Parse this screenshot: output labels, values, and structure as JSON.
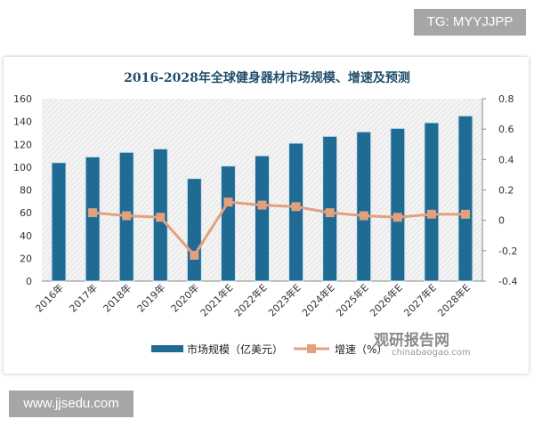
{
  "watermark_top": "TG: MYYJJPP",
  "watermark_bottom": "www.jjsedu.com",
  "brand": {
    "name": "观研报告网",
    "url": "chinabaogao.com"
  },
  "chart_data": {
    "type": "bar+line",
    "title": "2016-2028年全球健身器材市场规模、增速及预测",
    "categories": [
      "2016年",
      "2017年",
      "2018年",
      "2019年",
      "2020年",
      "2021年E",
      "2022年E",
      "2023年E",
      "2024年E",
      "2025年E",
      "2026年E",
      "2027年E",
      "2028年E"
    ],
    "series": [
      {
        "name": "市场规模（亿美元）",
        "type": "bar",
        "axis": "left",
        "color": "#1f6b94",
        "values": [
          104,
          109,
          113,
          116,
          90,
          101,
          110,
          121,
          127,
          131,
          134,
          139,
          145
        ]
      },
      {
        "name": "增速（%）",
        "type": "line",
        "axis": "right",
        "color": "#e3a07e",
        "values": [
          null,
          0.05,
          0.03,
          0.02,
          -0.23,
          0.12,
          0.1,
          0.09,
          0.05,
          0.03,
          0.02,
          0.04,
          0.04
        ]
      }
    ],
    "ylim_left": [
      0,
      160
    ],
    "yticks_left": [
      0,
      20,
      40,
      60,
      80,
      100,
      120,
      140,
      160
    ],
    "ylim_right": [
      -0.4,
      0.8
    ],
    "yticks_right": [
      -0.4,
      -0.2,
      0,
      0.2,
      0.4,
      0.6,
      0.8
    ],
    "legend": "bottom",
    "grid": false
  }
}
